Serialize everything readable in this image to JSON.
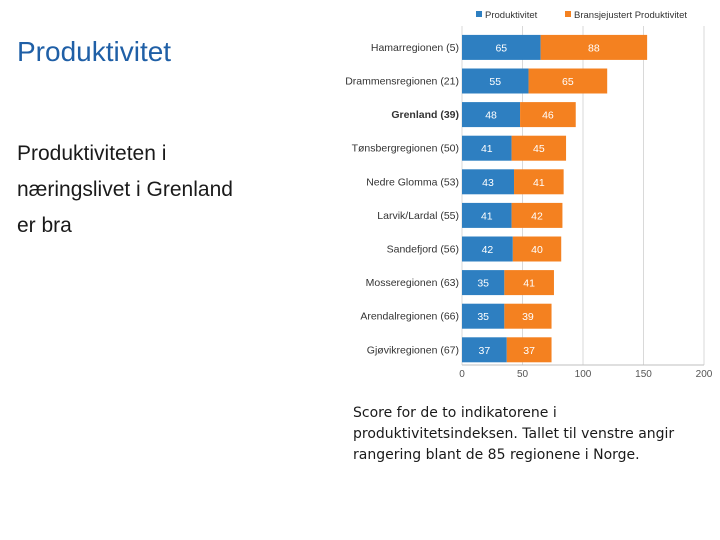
{
  "slide": {
    "title": "Produktivitet",
    "body": "Produktiviteten i næringslivet i Grenland er bra",
    "caption": "Score for de to indikatorene i produktivitetsindeksen. Tallet til venstre angir rangering blant de 85 regionene i Norge."
  },
  "chart_data": {
    "type": "bar",
    "orientation": "horizontal",
    "stacked": true,
    "categories": [
      "Hamarregionen (5)",
      "Drammensregionen (21)",
      "Grenland (39)",
      "Tønsbergregionen (50)",
      "Nedre Glomma (53)",
      "Larvik/Lardal (55)",
      "Sandefjord (56)",
      "Mosseregionen (63)",
      "Arendalregionen (66)",
      "Gjøvikregionen (67)"
    ],
    "highlight_category": "Grenland (39)",
    "series": [
      {
        "name": "Produktivitet",
        "color": "#2e7fc1",
        "values": [
          65,
          55,
          48,
          41,
          43,
          41,
          42,
          35,
          35,
          37
        ]
      },
      {
        "name": "Bransjejustert Produktivitet",
        "color": "#f48120",
        "values": [
          88,
          65,
          46,
          45,
          41,
          42,
          40,
          41,
          39,
          37
        ]
      }
    ],
    "xlim": [
      0,
      200
    ],
    "xticks": [
      0,
      50,
      100,
      150,
      200
    ],
    "grid": true,
    "legend_position": "top-right"
  }
}
